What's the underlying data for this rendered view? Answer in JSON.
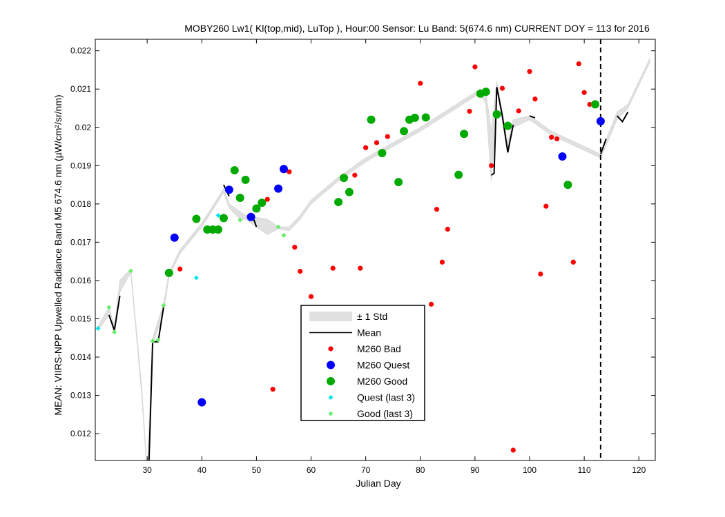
{
  "chart_data": {
    "type": "scatter",
    "title": "MOBY260   Lw1( Kl(top,mid), LuTop ),   Hour:00 Sensor: Lu Band: 5(674.6 nm)   CURRENT DOY = 113 for 2016",
    "xlabel": "Julian Day",
    "ylabel": "MEAN: VIIRS-NPP Upwelled Radiance Band M5 674.6 nm (µW/cm²/sr/nm)",
    "xlim": [
      20.5,
      123
    ],
    "ylim": [
      0.0113,
      0.0223
    ],
    "xticks": [
      30,
      40,
      50,
      60,
      70,
      80,
      90,
      100,
      110,
      120
    ],
    "yticks": [
      0.012,
      0.013,
      0.014,
      0.015,
      0.016,
      0.017,
      0.018,
      0.019,
      0.02,
      0.021,
      0.022
    ],
    "current_doy": 113,
    "legend_position": "center",
    "legend": [
      "± 1 Std",
      "Mean",
      "M260 Bad",
      "M260 Quest",
      "M260 Good",
      "Quest (last 3)",
      "Good (last 3)"
    ],
    "colors": {
      "bad": "#ff0000",
      "quest": "#0000ff",
      "good": "#00aa00",
      "quest_last3": "#00e5ee",
      "good_last3": "#66ee66",
      "std_band": "#e0e0e0",
      "mean": "#000000"
    },
    "series": [
      {
        "name": "M260 Bad",
        "x": [
          36,
          52,
          53,
          56,
          57,
          58,
          60,
          64,
          68,
          69,
          70,
          72,
          74,
          80,
          82,
          83,
          84,
          85,
          89,
          90,
          93,
          95,
          97,
          98,
          100,
          101,
          102,
          103,
          104,
          105,
          108,
          109,
          110,
          111
        ],
        "y": [
          0.0163,
          0.01812,
          0.01316,
          0.01884,
          0.01687,
          0.01624,
          0.01558,
          0.01632,
          0.01875,
          0.01632,
          0.01947,
          0.0196,
          0.01976,
          0.02115,
          0.01538,
          0.01786,
          0.01648,
          0.01734,
          0.02042,
          0.02158,
          0.019,
          0.02102,
          0.01157,
          0.02043,
          0.02146,
          0.02074,
          0.01617,
          0.01794,
          0.01974,
          0.0197,
          0.01648,
          0.02166,
          0.02091,
          0.0206
        ]
      },
      {
        "name": "M260 Quest",
        "x": [
          35,
          40,
          45,
          49,
          54,
          55,
          106,
          113
        ],
        "y": [
          0.01712,
          0.01282,
          0.01837,
          0.01766,
          0.0184,
          0.01891,
          0.01924,
          0.02016
        ]
      },
      {
        "name": "M260 Good",
        "x": [
          34,
          39,
          41,
          42,
          43,
          44,
          46,
          47,
          48,
          50,
          51,
          65,
          66,
          67,
          71,
          73,
          76,
          77,
          78,
          79,
          81,
          87,
          88,
          91,
          92,
          94,
          96,
          107,
          112
        ],
        "y": [
          0.0162,
          0.01761,
          0.01733,
          0.01733,
          0.01733,
          0.01763,
          0.01888,
          0.01816,
          0.01863,
          0.01788,
          0.01803,
          0.01805,
          0.01868,
          0.01831,
          0.0202,
          0.01933,
          0.01857,
          0.0199,
          0.0202,
          0.02025,
          0.02026,
          0.01876,
          0.01983,
          0.02088,
          0.02093,
          0.02034,
          0.02004,
          0.0185,
          0.0206
        ]
      },
      {
        "name": "Quest (last 3)",
        "x": [
          21,
          39,
          43
        ],
        "y": [
          0.01475,
          0.01607,
          0.0177
        ]
      },
      {
        "name": "Good (last 3)",
        "x": [
          23,
          24,
          27,
          31,
          32,
          33,
          47,
          54,
          55
        ],
        "y": [
          0.0153,
          0.01465,
          0.01625,
          0.01442,
          0.01445,
          0.01535,
          0.01758,
          0.0174,
          0.01718
        ]
      },
      {
        "name": "Mean",
        "segments": [
          [
            [
              23,
              0.0151
            ],
            [
              24,
              0.0147
            ],
            [
              25,
              0.0156
            ]
          ],
          [
            [
              30.3,
              0.0111
            ],
            [
              31,
              0.0144
            ],
            [
              32,
              0.0144
            ],
            [
              33,
              0.0153
            ]
          ],
          [
            [
              44,
              0.0185
            ],
            [
              45,
              0.0182
            ]
          ],
          [
            [
              49.5,
              0.0176
            ],
            [
              50,
              0.0174
            ]
          ],
          [
            [
              93,
              0.01875
            ],
            [
              93.5,
              0.0188
            ],
            [
              94,
              0.02105
            ],
            [
              95,
              0.0203
            ],
            [
              96,
              0.01935
            ],
            [
              97,
              0.02007
            ]
          ],
          [
            [
              100,
              0.0203
            ],
            [
              101,
              0.02025
            ]
          ],
          [
            [
              113,
              0.0193
            ],
            [
              114,
              0.0197
            ]
          ],
          [
            [
              116,
              0.0203
            ],
            [
              117,
              0.02015
            ],
            [
              118,
              0.0204
            ]
          ]
        ]
      },
      {
        "name": "± 1 Std",
        "x": [
          21,
          23,
          24,
          25,
          27,
          29,
          30,
          31,
          33,
          34,
          35,
          36,
          40,
          44,
          45,
          47,
          48,
          52,
          54,
          56,
          58,
          60,
          65,
          70,
          80,
          91,
          92,
          93,
          94,
          95,
          96,
          97,
          100,
          104,
          110,
          113,
          116,
          118,
          122
        ],
        "upper": [
          0.0148,
          0.0153,
          0.0148,
          0.016,
          0.0163,
          0.0132,
          0.011,
          0.0145,
          0.0154,
          0.0162,
          0.0165,
          0.0168,
          0.0175,
          0.0184,
          0.018,
          0.0178,
          0.0177,
          0.0176,
          0.0174,
          0.0174,
          0.0177,
          0.0181,
          0.0187,
          0.0192,
          0.02,
          0.021,
          0.0209,
          0.0199,
          0.0212,
          0.0204,
          0.0196,
          0.0202,
          0.0203,
          0.0199,
          0.0195,
          0.0193,
          0.0204,
          0.0206,
          0.0218
        ],
        "lower": [
          0.0147,
          0.0151,
          0.0146,
          0.0157,
          0.0162,
          0.013,
          0.0109,
          0.0143,
          0.0152,
          0.0161,
          0.0164,
          0.0167,
          0.0174,
          0.0183,
          0.0179,
          0.0176,
          0.0176,
          0.0172,
          0.01735,
          0.0173,
          0.0176,
          0.018,
          0.0186,
          0.0191,
          0.0199,
          0.0209,
          0.0206,
          0.0186,
          0.021,
          0.0202,
          0.0193,
          0.02,
          0.0202,
          0.0198,
          0.0194,
          0.0192,
          0.0202,
          0.0205,
          0.0217
        ]
      }
    ]
  }
}
